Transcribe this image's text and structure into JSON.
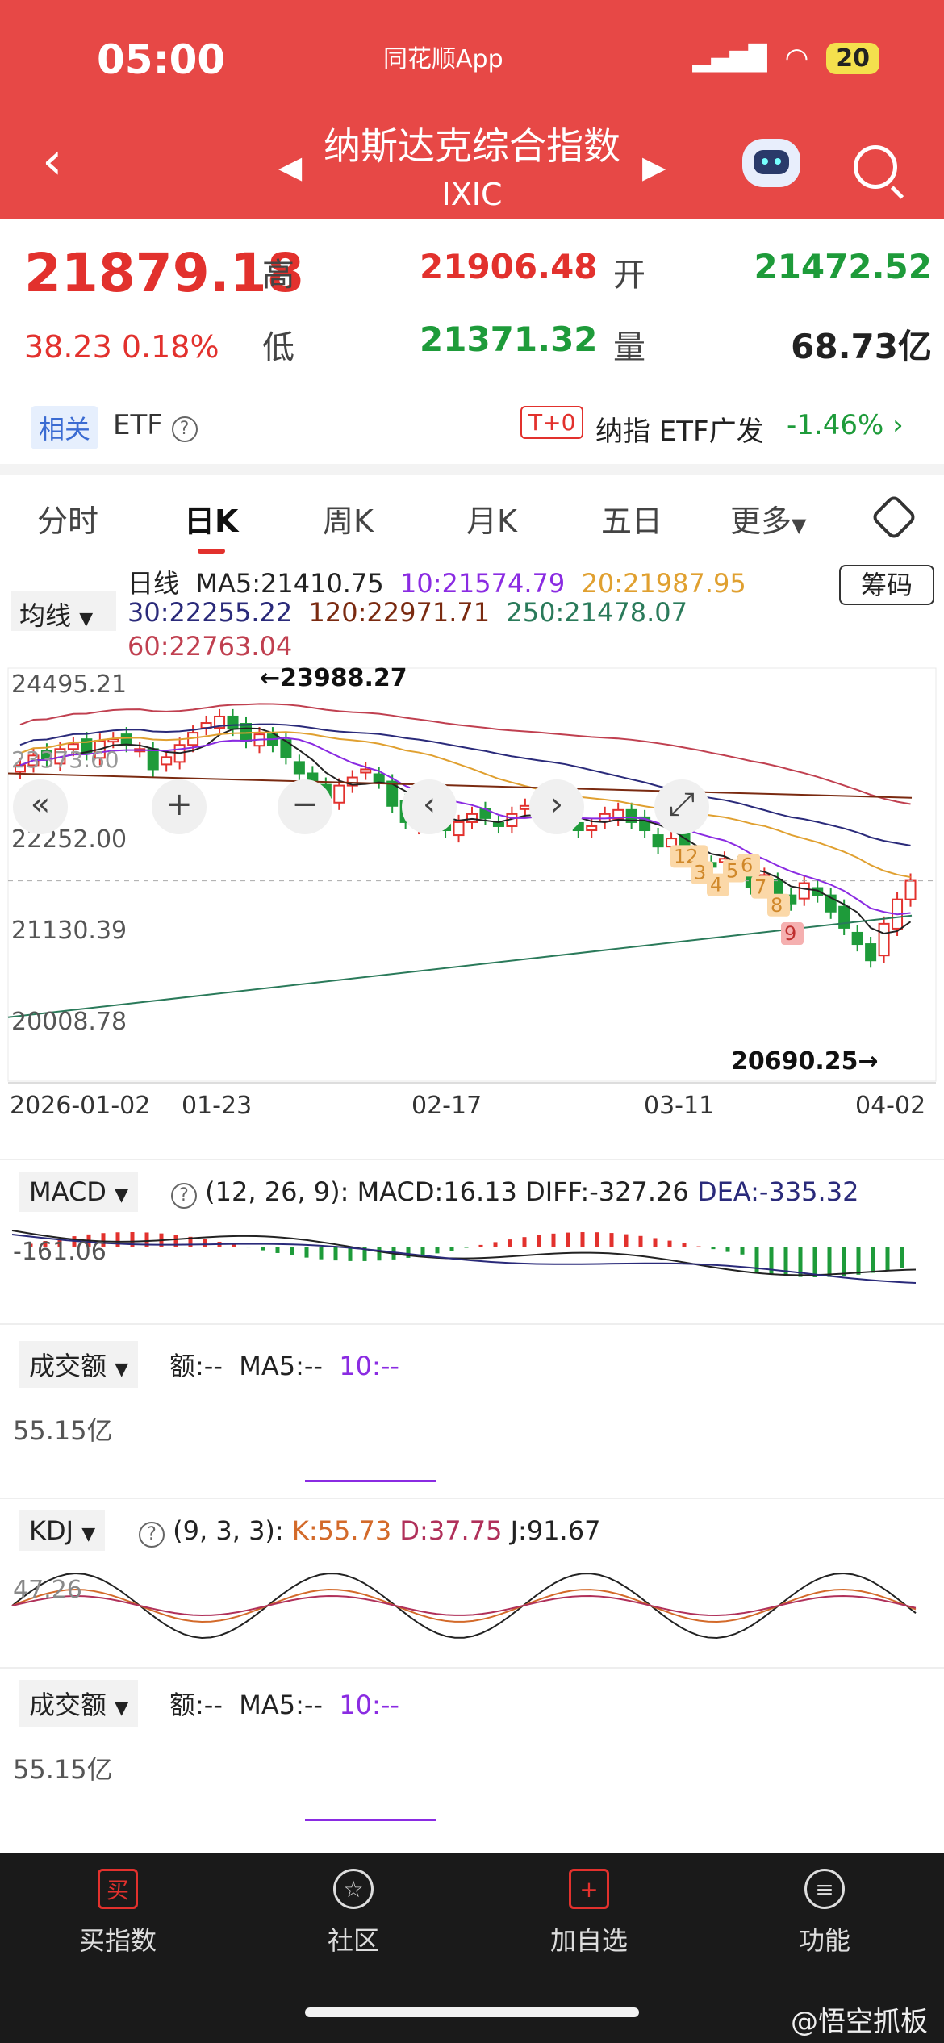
{
  "status": {
    "time": "05:00",
    "app": "同花顺App",
    "battery": "20"
  },
  "header": {
    "title": "纳斯达克综合指数",
    "code": "IXIC"
  },
  "quote": {
    "price": "21879.18",
    "change": "38.23  0.18%",
    "high_label": "高",
    "high": "21906.48",
    "low_label": "低",
    "low": "21371.32",
    "open_label": "开",
    "open": "21472.52",
    "vol_label": "量",
    "volume": "68.73亿"
  },
  "etf": {
    "tag": "相关",
    "label": "ETF",
    "tplus": "T+0",
    "name": "纳指 ETF广发",
    "pct": "-1.46%"
  },
  "tabs": [
    "分时",
    "日K",
    "周K",
    "月K",
    "五日",
    "更多"
  ],
  "ma": {
    "select": "均线",
    "period": "日线",
    "ma5": "MA5:21410.75",
    "ma10": "10:21574.79",
    "ma20": "20:21987.95",
    "ma30": "30:22255.22",
    "ma120": "120:22971.71",
    "ma250": "250:21478.07",
    "ma60": "60:22763.04",
    "chip_button": "筹码"
  },
  "colors": {
    "red": "#e2312d",
    "green": "#1e9b3a",
    "ma5": "#222222",
    "ma10": "#8a2be2",
    "ma20": "#e0a030",
    "ma30": "#2a2a7a",
    "ma120": "#7a2a10",
    "ma250": "#2a7a5a",
    "ma60": "#c04050"
  },
  "chart_data": {
    "type": "candlestick",
    "y_ticks": [
      "24495.21",
      "22252.00",
      "21130.39",
      "20008.78"
    ],
    "x_ticks": [
      "2026-01-02",
      "01-23",
      "02-17",
      "03-11",
      "04-02"
    ],
    "annotations": [
      "←23988.27",
      "20690.25→",
      "12",
      "3",
      "4",
      "5",
      "6",
      "7",
      "8",
      "9"
    ],
    "partial_y_label": "23373.60"
  },
  "macd": {
    "label": "MACD",
    "params": "(12, 26, 9):",
    "macd": "MACD:16.13",
    "diff": "DIFF:-327.26",
    "dea": "DEA:-335.32",
    "axis": "-161.06"
  },
  "amount1": {
    "label": "成交额",
    "e": "额:--",
    "ma5": "MA5:--",
    "ma10": "10:--",
    "axis": "55.15亿"
  },
  "kdj": {
    "label": "KDJ",
    "params": "(9, 3, 3):",
    "k": "K:55.73",
    "d": "D:37.75",
    "j": "J:91.67",
    "axis": "47.26"
  },
  "amount2": {
    "label": "成交额",
    "e": "额:--",
    "ma5": "MA5:--",
    "ma10": "10:--",
    "axis": "55.15亿"
  },
  "nav": {
    "buy": "买指数",
    "community": "社区",
    "add": "加自选",
    "func": "功能",
    "buy_icon": "买",
    "add_icon": "+"
  },
  "watermark": "@悟空抓板"
}
